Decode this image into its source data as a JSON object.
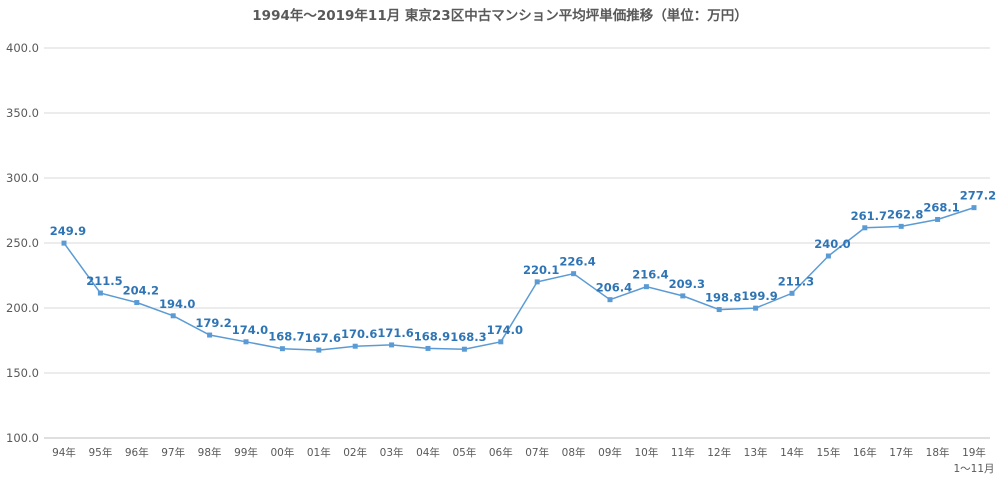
{
  "chart_data": {
    "type": "line",
    "title": "1994年～2019年11月  東京23区中古マンション平均坪単価推移（単位：万円）",
    "x": [
      "94年",
      "95年",
      "96年",
      "97年",
      "98年",
      "99年",
      "00年",
      "01年",
      "02年",
      "03年",
      "04年",
      "05年",
      "06年",
      "07年",
      "08年",
      "09年",
      "10年",
      "11年",
      "12年",
      "13年",
      "14年",
      "15年",
      "16年",
      "17年",
      "18年",
      "19年"
    ],
    "x_sublabel": {
      "index": 25,
      "text": "1～11月"
    },
    "series": [
      {
        "color": "#5B9BD5",
        "values": [
          249.9,
          211.5,
          204.2,
          194.0,
          179.2,
          174.0,
          168.7,
          167.6,
          170.6,
          171.6,
          168.9,
          168.3,
          174.0,
          220.1,
          226.4,
          206.4,
          216.4,
          209.3,
          198.8,
          199.9,
          211.3,
          240.0,
          261.7,
          262.8,
          268.1,
          277.2
        ],
        "labels": [
          "249.9",
          "211.5",
          "204.2",
          "194.0",
          "179.2",
          "174.0",
          "168.7",
          "167.6",
          "170.6",
          "171.6",
          "168.9",
          "168.3",
          "174.0",
          "220.1",
          "226.4",
          "206.4",
          "216.4",
          "209.3",
          "198.8",
          "199.9",
          "211.3",
          "240.0",
          "261.7",
          "262.8",
          "268.1",
          "277.2"
        ]
      }
    ],
    "yticks": [
      "100.0",
      "150.0",
      "200.0",
      "250.0",
      "300.0",
      "350.0",
      "400.0"
    ],
    "ylim": [
      100,
      400
    ],
    "xlabel": "",
    "ylabel": "",
    "grid": true,
    "label_color": "#2F75B5"
  }
}
